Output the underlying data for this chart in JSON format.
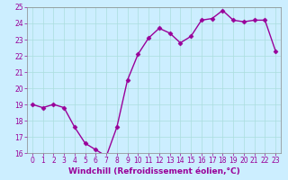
{
  "x": [
    0,
    1,
    2,
    3,
    4,
    5,
    6,
    7,
    8,
    9,
    10,
    11,
    12,
    13,
    14,
    15,
    16,
    17,
    18,
    19,
    20,
    21,
    22,
    23
  ],
  "y": [
    19.0,
    18.8,
    19.0,
    18.8,
    17.6,
    16.6,
    16.2,
    15.8,
    17.6,
    20.5,
    22.1,
    23.1,
    23.7,
    23.4,
    22.8,
    23.2,
    24.2,
    24.3,
    24.8,
    24.2,
    24.1,
    24.2,
    24.2,
    22.3
  ],
  "line_color": "#990099",
  "marker": "D",
  "marker_size": 2.5,
  "bg_color": "#cceeff",
  "grid_color": "#aadddd",
  "xlabel": "Windchill (Refroidissement éolien,°C)",
  "xlabel_color": "#990099",
  "tick_color": "#990099",
  "ylim": [
    16,
    25
  ],
  "xlim": [
    -0.5,
    23.5
  ],
  "yticks": [
    16,
    17,
    18,
    19,
    20,
    21,
    22,
    23,
    24,
    25
  ],
  "xticks": [
    0,
    1,
    2,
    3,
    4,
    5,
    6,
    7,
    8,
    9,
    10,
    11,
    12,
    13,
    14,
    15,
    16,
    17,
    18,
    19,
    20,
    21,
    22,
    23
  ],
  "tick_fontsize": 5.5,
  "xlabel_fontsize": 6.5,
  "line_width": 1.0,
  "spine_color": "#888888"
}
